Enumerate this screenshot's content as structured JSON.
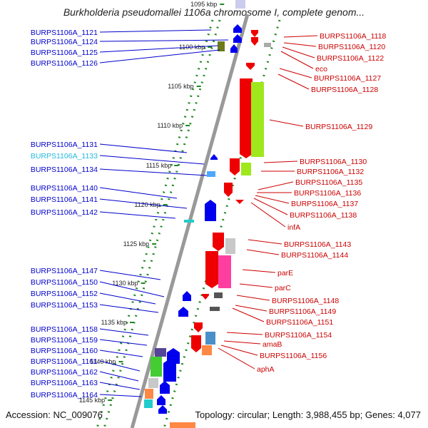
{
  "title": "Burkholderia pseudomallei 1106a chromosome I, complete genom...",
  "footer": {
    "accession": "Accession: NC_009076",
    "topology": "Topology: circular; Length: 3,988,455 bp; Genes: 4,077"
  },
  "colors": {
    "minus_strand_gene": "#0000ee",
    "minus_strand_label": "#0000cc",
    "plus_strand_gene": "#ee0000",
    "plus_strand_label": "#cc0000",
    "highlight_label": "#22bbdd",
    "backbone": "#999999",
    "tick": "#228822"
  },
  "kbp_ticks": [
    "1095 kbp",
    "1100 kbp",
    "1105 kbp",
    "1110 kbp",
    "1115 kbp",
    "1120 kbp",
    "1125 kbp",
    "1130 kbp",
    "1135 kbp",
    "1140 kbp",
    "1145 kbp"
  ],
  "left_labels": [
    "BURPS1106A_1121",
    "BURPS1106A_1124",
    "BURPS1106A_1125",
    "BURPS1106A_1126",
    "BURPS1106A_1131",
    "BURPS1106A_1133",
    "BURPS1106A_1134",
    "BURPS1106A_1140",
    "BURPS1106A_1141",
    "BURPS1106A_1142",
    "BURPS1106A_1147",
    "BURPS1106A_1150",
    "BURPS1106A_1152",
    "BURPS1106A_1153",
    "BURPS1106A_1158",
    "BURPS1106A_1159",
    "BURPS1106A_1160",
    "BURPS1106A_1161",
    "BURPS1106A_1162",
    "BURPS1106A_1163",
    "BURPS1106A_1164"
  ],
  "right_labels": [
    "BURPS1106A_1118",
    "BURPS1106A_1120",
    "BURPS1106A_1122",
    "eco",
    "BURPS1106A_1127",
    "BURPS1106A_1128",
    "BURPS1106A_1129",
    "BURPS1106A_1130",
    "BURPS1106A_1132",
    "BURPS1106A_1135",
    "BURPS1106A_1136",
    "BURPS1106A_1137",
    "BURPS1106A_1138",
    "infA",
    "BURPS1106A_1143",
    "BURPS1106A_1144",
    "parE",
    "parC",
    "BURPS1106A_1148",
    "BURPS1106A_1149",
    "BURPS1106A_1151",
    "BURPS1106A_1154",
    "amaB",
    "BURPS1106A_1156",
    "aphA"
  ]
}
